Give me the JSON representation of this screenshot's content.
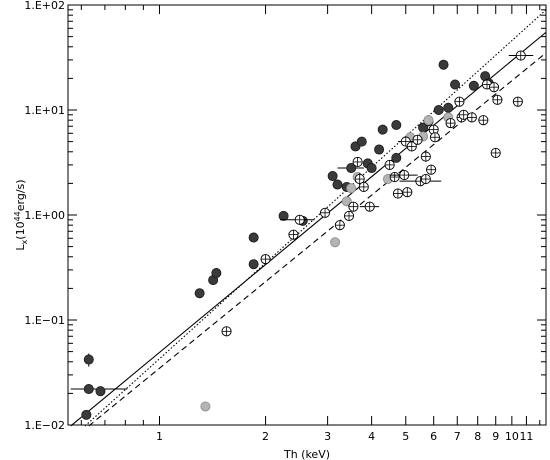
{
  "chart_data": {
    "type": "scatter",
    "title": "",
    "xlabel": "Th (keV)",
    "ylabel_parts": {
      "main": "L",
      "sub": "x",
      "open": "(10",
      "sup": "44",
      "close": "erg/s)"
    },
    "xscale": "log",
    "yscale": "log",
    "xlim": [
      0.55,
      12.5
    ],
    "ylim": [
      0.01,
      100
    ],
    "grid": false,
    "legend": "none",
    "x_ticks": [
      {
        "value": 1,
        "label": "1"
      },
      {
        "value": 2,
        "label": "2"
      },
      {
        "value": 3,
        "label": "3"
      },
      {
        "value": 4,
        "label": "4"
      },
      {
        "value": 5,
        "label": "5"
      },
      {
        "value": 6,
        "label": "6"
      },
      {
        "value": 7,
        "label": "7"
      },
      {
        "value": 8,
        "label": "8"
      },
      {
        "value": 9,
        "label": "9"
      },
      {
        "value": 10,
        "label": "10"
      },
      {
        "value": 11,
        "label": "11"
      }
    ],
    "y_ticks": [
      {
        "value": 0.01,
        "label": "1.E−02"
      },
      {
        "value": 0.1,
        "label": "1.E−01"
      },
      {
        "value": 1,
        "label": "1.E+00"
      },
      {
        "value": 10,
        "label": "1.E+01"
      },
      {
        "value": 100,
        "label": "1.E+02"
      }
    ],
    "lines": [
      {
        "style": "solid",
        "points": [
          [
            0.56,
            0.0098
          ],
          [
            12.5,
            55
          ]
        ]
      },
      {
        "style": "dotted",
        "points": [
          [
            0.615,
            0.0098
          ],
          [
            12.5,
            90
          ]
        ]
      },
      {
        "style": "dashed",
        "points": [
          [
            0.63,
            0.0098
          ],
          [
            12.5,
            35
          ]
        ]
      }
    ],
    "series": [
      {
        "marker": "filled-dark",
        "color": "#3a3a3a",
        "points": [
          {
            "x": 0.63,
            "y": 0.042,
            "yerr": 0.006
          },
          {
            "x": 0.63,
            "y": 0.022,
            "xerr": [
              0.56,
              0.81
            ]
          },
          {
            "x": 0.62,
            "y": 0.0125
          },
          {
            "x": 0.68,
            "y": 0.021
          },
          {
            "x": 1.3,
            "y": 0.18
          },
          {
            "x": 1.42,
            "y": 0.24
          },
          {
            "x": 1.45,
            "y": 0.28
          },
          {
            "x": 1.85,
            "y": 0.34
          },
          {
            "x": 1.85,
            "y": 0.61
          },
          {
            "x": 2.25,
            "y": 0.98
          },
          {
            "x": 2.55,
            "y": 0.88
          },
          {
            "x": 3.1,
            "y": 2.35
          },
          {
            "x": 3.2,
            "y": 1.95
          },
          {
            "x": 3.4,
            "y": 1.85
          },
          {
            "x": 3.5,
            "y": 2.8,
            "xerr": [
              3.2,
              3.8
            ]
          },
          {
            "x": 3.6,
            "y": 4.5
          },
          {
            "x": 3.75,
            "y": 5.0
          },
          {
            "x": 3.9,
            "y": 3.1
          },
          {
            "x": 4.0,
            "y": 2.8
          },
          {
            "x": 4.3,
            "y": 6.5
          },
          {
            "x": 4.2,
            "y": 4.2
          },
          {
            "x": 4.7,
            "y": 3.5
          },
          {
            "x": 4.7,
            "y": 7.2
          },
          {
            "x": 5.6,
            "y": 6.8
          },
          {
            "x": 5.8,
            "y": 7.8
          },
          {
            "x": 6.2,
            "y": 10.0
          },
          {
            "x": 6.4,
            "y": 27.0,
            "yerr": 2.5
          },
          {
            "x": 6.6,
            "y": 10.5
          },
          {
            "x": 6.9,
            "y": 17.5
          },
          {
            "x": 7.8,
            "y": 17.0
          },
          {
            "x": 8.4,
            "y": 21.0
          },
          {
            "x": 8.6,
            "y": 18.0
          }
        ]
      },
      {
        "marker": "filled-grey",
        "color": "#b4b4b4",
        "points": [
          {
            "x": 1.35,
            "y": 0.015
          },
          {
            "x": 3.15,
            "y": 0.55
          },
          {
            "x": 3.4,
            "y": 1.35
          },
          {
            "x": 3.5,
            "y": 1.8
          },
          {
            "x": 3.65,
            "y": 2.3
          },
          {
            "x": 4.45,
            "y": 2.2
          },
          {
            "x": 5.15,
            "y": 5.5
          },
          {
            "x": 5.6,
            "y": 5.6
          },
          {
            "x": 5.8,
            "y": 8.0
          },
          {
            "x": 6.6,
            "y": 8.5
          }
        ]
      },
      {
        "marker": "open",
        "color": "#000000",
        "points": [
          {
            "x": 1.55,
            "y": 0.078
          },
          {
            "x": 2.0,
            "y": 0.38
          },
          {
            "x": 2.4,
            "y": 0.65
          },
          {
            "x": 2.5,
            "y": 0.9,
            "xerr": [
              2.2,
              2.75
            ]
          },
          {
            "x": 2.95,
            "y": 1.05
          },
          {
            "x": 3.25,
            "y": 0.8
          },
          {
            "x": 3.45,
            "y": 0.98
          },
          {
            "x": 3.55,
            "y": 1.2
          },
          {
            "x": 3.65,
            "y": 3.2
          },
          {
            "x": 3.7,
            "y": 2.2,
            "yerr": 0.3
          },
          {
            "x": 3.8,
            "y": 1.85
          },
          {
            "x": 3.95,
            "y": 1.2,
            "xerr": [
              3.7,
              4.2
            ]
          },
          {
            "x": 4.5,
            "y": 3.0
          },
          {
            "x": 4.65,
            "y": 2.3
          },
          {
            "x": 4.75,
            "y": 1.6
          },
          {
            "x": 4.95,
            "y": 2.4,
            "xerr": [
              4.5,
              5.4
            ]
          },
          {
            "x": 5.05,
            "y": 1.65
          },
          {
            "x": 5.0,
            "y": 5.0,
            "xerr": [
              4.75,
              5.3
            ]
          },
          {
            "x": 5.2,
            "y": 4.5
          },
          {
            "x": 5.4,
            "y": 5.2
          },
          {
            "x": 5.5,
            "y": 2.1,
            "xerr": [
              4.8,
              6.3
            ]
          },
          {
            "x": 5.7,
            "y": 3.6,
            "yerr": 0.4
          },
          {
            "x": 5.7,
            "y": 2.2
          },
          {
            "x": 5.9,
            "y": 2.7
          },
          {
            "x": 6.0,
            "y": 6.5
          },
          {
            "x": 6.05,
            "y": 5.5
          },
          {
            "x": 6.7,
            "y": 7.5
          },
          {
            "x": 7.1,
            "y": 12.0
          },
          {
            "x": 7.2,
            "y": 8.5
          },
          {
            "x": 7.3,
            "y": 9.0
          },
          {
            "x": 7.7,
            "y": 8.5
          },
          {
            "x": 8.3,
            "y": 8.0
          },
          {
            "x": 8.5,
            "y": 17.5
          },
          {
            "x": 8.9,
            "y": 16.5
          },
          {
            "x": 9.1,
            "y": 12.5
          },
          {
            "x": 9.0,
            "y": 3.9
          },
          {
            "x": 10.4,
            "y": 12.0
          },
          {
            "x": 10.6,
            "y": 33.0,
            "xerr": [
              9.8,
              11.5
            ]
          }
        ]
      }
    ]
  }
}
